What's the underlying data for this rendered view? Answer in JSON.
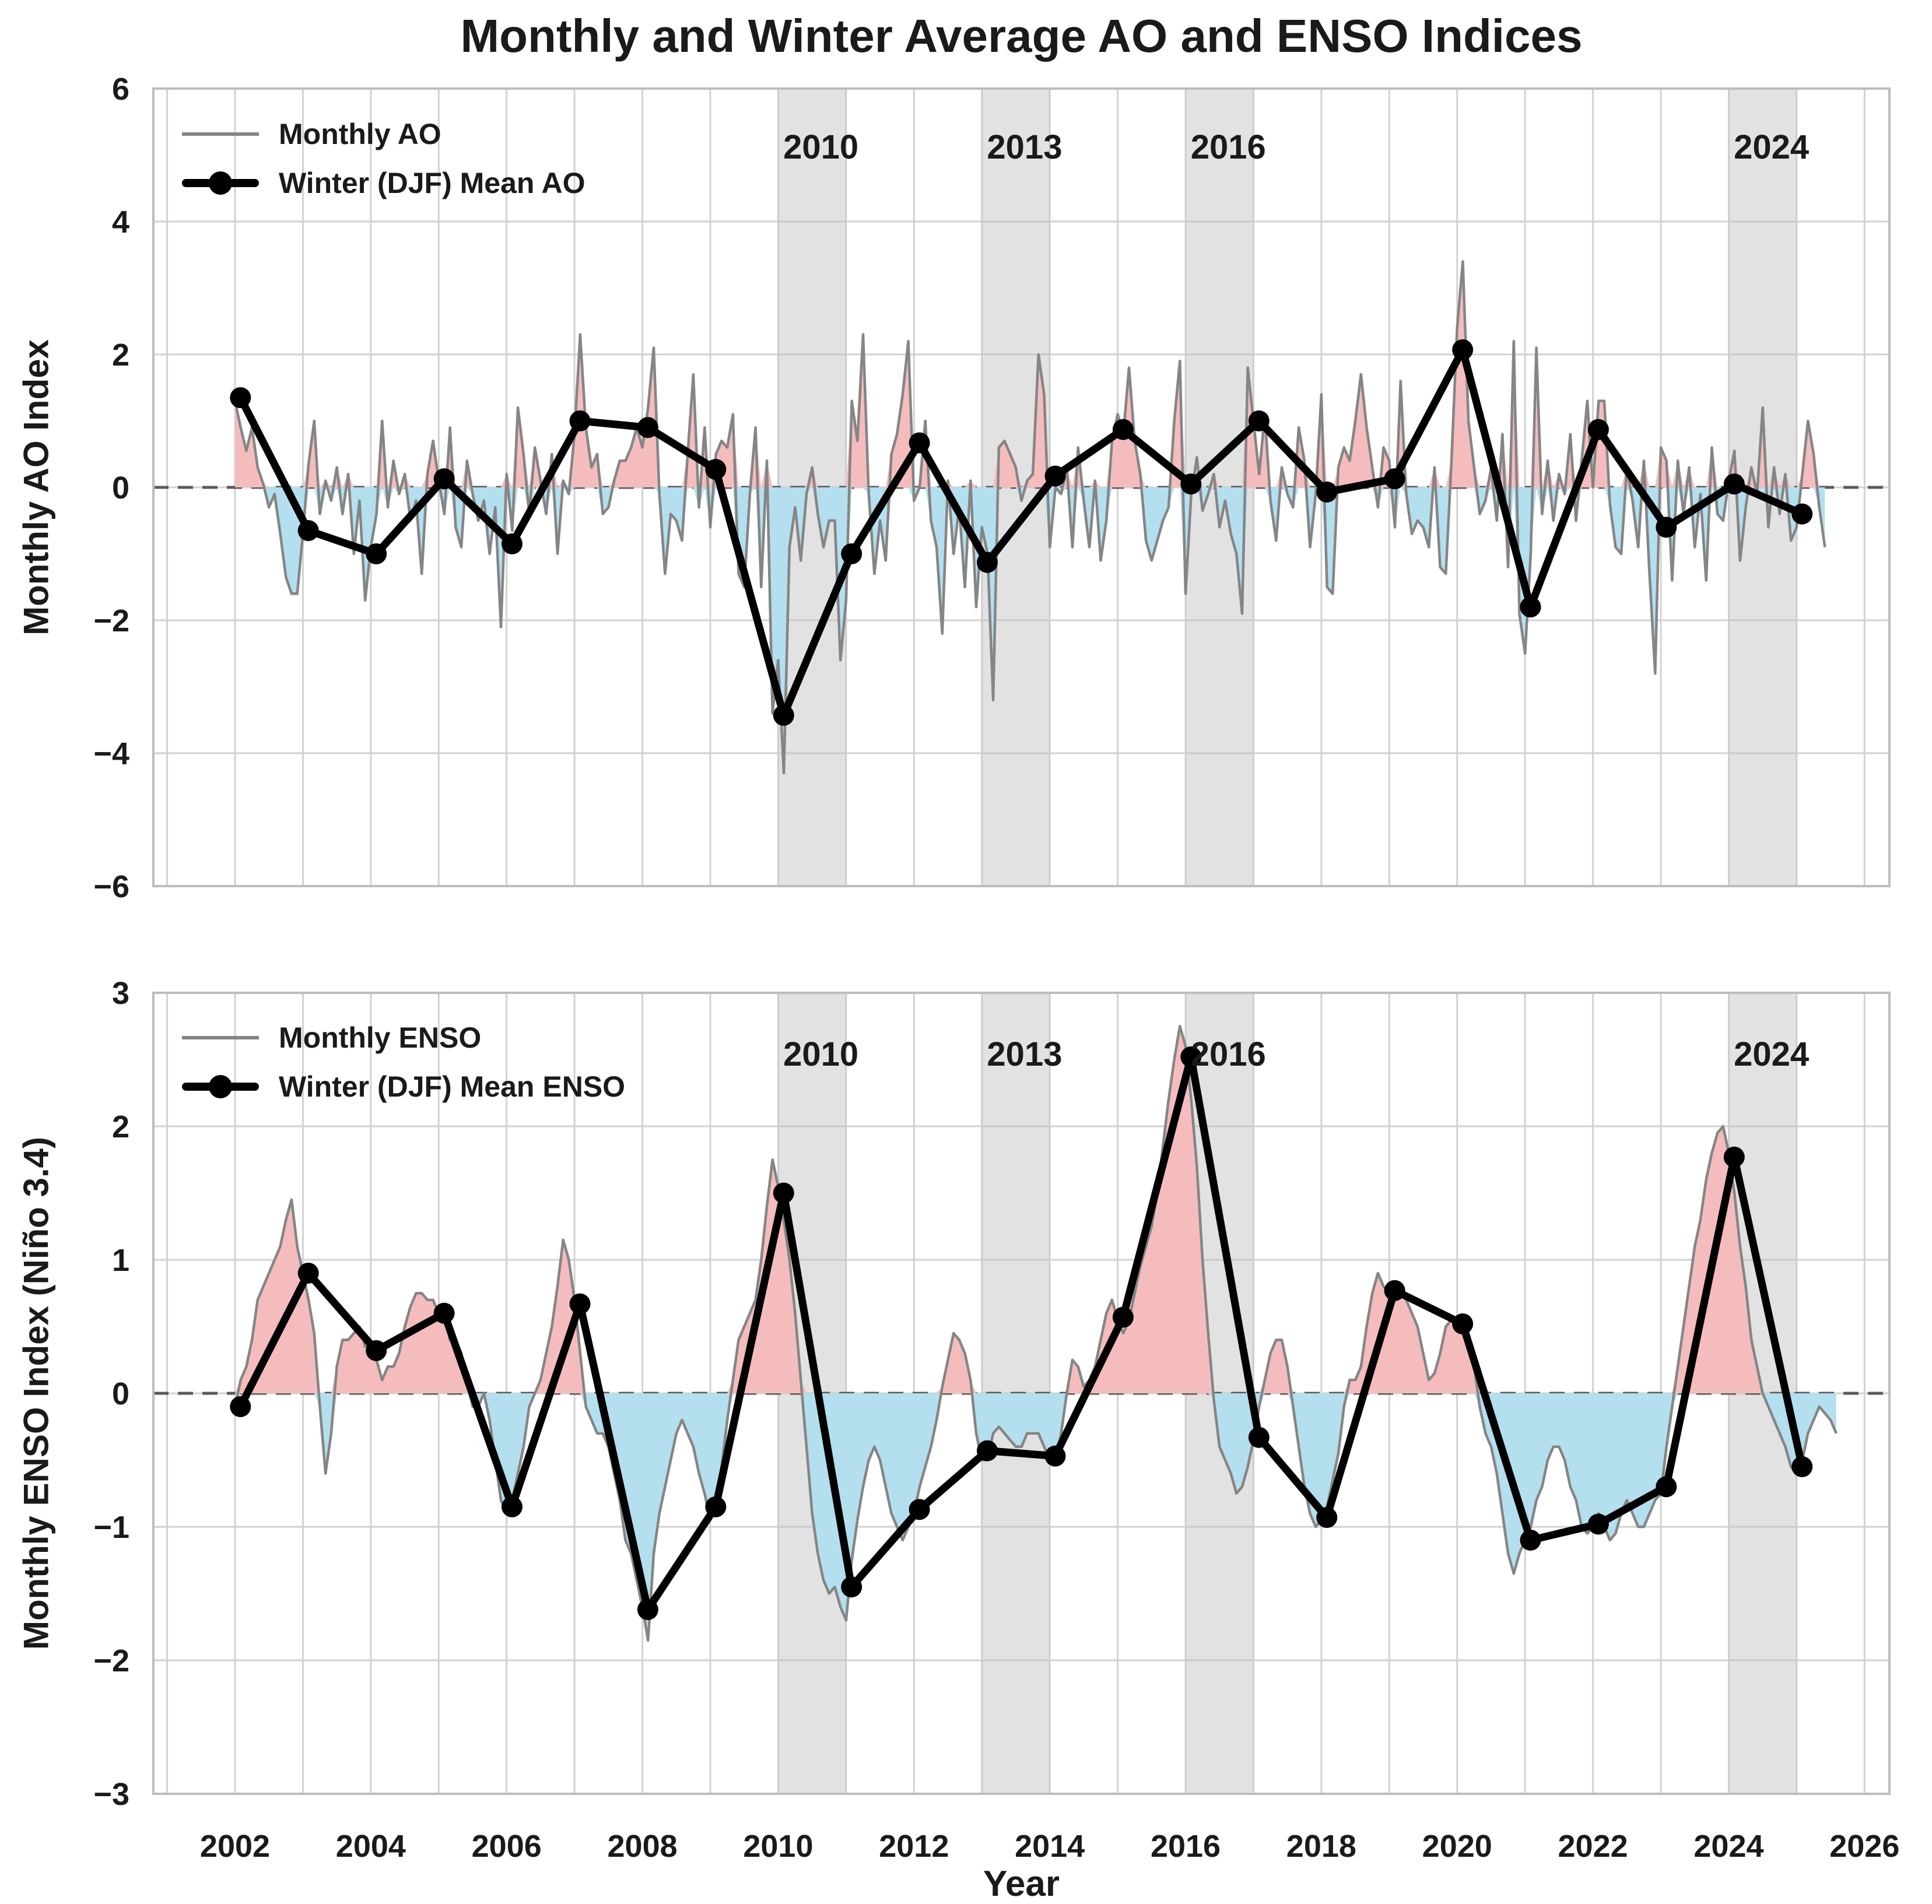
{
  "title": "Monthly and Winter Average AO and ENSO Indices",
  "xlabel": "Year",
  "colors": {
    "positive_fill": "#F5BCBE",
    "negative_fill": "#B4DFEF",
    "monthly_line": "#858585",
    "winter_line": "#000000",
    "highlight_band": "rgba(190,190,190,0.45)",
    "grid": "#D2D2D2",
    "spine": "#BDBDBD",
    "zero_line": "#5A5A5A",
    "text": "#1A1A1A"
  },
  "x_ticks": [
    2002,
    2004,
    2006,
    2008,
    2010,
    2012,
    2014,
    2016,
    2018,
    2020,
    2022,
    2024,
    2026
  ],
  "highlights": [
    {
      "year": 2010,
      "label": "2010"
    },
    {
      "year": 2013,
      "label": "2013"
    },
    {
      "year": 2016,
      "label": "2016"
    },
    {
      "year": 2024,
      "label": "2024"
    }
  ],
  "chart_data": [
    {
      "type": "area+line",
      "panel": "ao",
      "ylabel": "Monthly AO Index",
      "ylim": [
        -6,
        6
      ],
      "y_ticks": [
        6,
        4,
        2,
        0,
        -2,
        -4,
        -6
      ],
      "xlim_years": [
        2000.8,
        2026.4
      ],
      "grid": "on",
      "legend_position": "upper-left",
      "legend": [
        "Monthly AO",
        "Winter (DJF) Mean AO"
      ],
      "monthly": {
        "name": "Monthly AO",
        "start_year": 2002,
        "step_months": 1,
        "values": [
          1.3,
          0.9,
          0.55,
          0.9,
          0.3,
          0.05,
          -0.3,
          -0.1,
          -0.7,
          -1.35,
          -1.6,
          -1.6,
          -0.7,
          0.35,
          1.0,
          -0.4,
          0.1,
          -0.2,
          0.3,
          -0.4,
          0.2,
          -1.0,
          -0.2,
          -1.7,
          -0.9,
          -0.4,
          1.0,
          -0.3,
          0.4,
          -0.1,
          0.2,
          -0.5,
          -0.2,
          -1.3,
          0.2,
          0.7,
          0.1,
          -0.4,
          0.9,
          -0.6,
          -0.9,
          0.4,
          -0.1,
          -0.5,
          -0.2,
          -1.0,
          -0.3,
          -2.1,
          0.2,
          -0.65,
          1.2,
          0.5,
          -0.4,
          0.6,
          0.1,
          -0.4,
          0.5,
          -1.0,
          0.1,
          -0.1,
          0.8,
          2.3,
          0.9,
          0.3,
          0.5,
          -0.4,
          -0.3,
          0.1,
          0.4,
          0.4,
          0.6,
          0.9,
          0.6,
          1.2,
          2.1,
          -0.1,
          -1.3,
          -0.4,
          -0.5,
          -0.8,
          0.5,
          1.7,
          -0.3,
          0.9,
          -0.6,
          0.5,
          0.7,
          0.6,
          1.1,
          -1.3,
          -1.5,
          -0.1,
          0.9,
          -1.5,
          0.4,
          -3.4,
          -2.6,
          -4.3,
          -0.9,
          -0.3,
          -1.1,
          -0.1,
          0.3,
          -0.4,
          -0.9,
          -0.5,
          -0.5,
          -2.6,
          -1.7,
          1.3,
          0.7,
          2.3,
          -0.1,
          -1.3,
          -0.5,
          -1.1,
          0.5,
          0.8,
          1.4,
          2.2,
          -0.2,
          0.0,
          1.0,
          -0.5,
          -0.9,
          -2.2,
          0.1,
          -1.0,
          -0.3,
          -1.5,
          0.1,
          -1.8,
          -0.6,
          -1.0,
          -3.2,
          0.6,
          0.7,
          0.5,
          0.3,
          -0.2,
          0.1,
          0.2,
          2.0,
          1.4,
          -0.9,
          0.0,
          -0.1,
          0.3,
          -0.9,
          0.6,
          -0.2,
          -0.9,
          0.1,
          -1.1,
          -0.5,
          0.7,
          1.1,
          0.8,
          1.8,
          0.7,
          0.2,
          -0.8,
          -1.1,
          -0.8,
          -0.5,
          -0.3,
          1.0,
          1.9,
          -1.6,
          -0.1,
          0.45,
          -0.35,
          -0.1,
          0.2,
          -0.6,
          -0.2,
          -0.7,
          -1.0,
          -1.9,
          1.8,
          1.0,
          0.2,
          1.1,
          -0.2,
          -0.8,
          0.3,
          -0.1,
          -0.3,
          0.9,
          0.4,
          -0.9,
          -0.1,
          1.4,
          -1.5,
          -1.6,
          0.3,
          0.6,
          0.4,
          1.0,
          1.7,
          0.9,
          0.3,
          -0.3,
          0.6,
          0.4,
          -0.6,
          1.6,
          -0.1,
          -0.7,
          -0.5,
          -0.6,
          -0.9,
          0.3,
          -1.2,
          -1.3,
          0.4,
          2.4,
          3.4,
          1.0,
          0.3,
          -0.4,
          -0.2,
          0.3,
          -0.5,
          0.8,
          -1.2,
          2.2,
          -1.9,
          -2.5,
          -1.0,
          2.1,
          -0.4,
          0.4,
          -0.5,
          0.2,
          -0.1,
          0.8,
          -0.5,
          0.4,
          1.3,
          0.0,
          1.3,
          1.3,
          -0.25,
          -0.9,
          -1.0,
          0.3,
          -0.2,
          -0.9,
          0.4,
          -1.3,
          -2.8,
          0.6,
          0.4,
          -1.4,
          0.4,
          -0.4,
          0.3,
          -0.9,
          -0.1,
          -1.4,
          0.6,
          -0.4,
          -0.5,
          0.1,
          0.55,
          -1.1,
          -0.3,
          0.3,
          -0.1,
          1.2,
          -0.6,
          0.3,
          -0.4,
          0.2,
          -0.8,
          -0.6,
          0.2,
          1.0,
          0.5,
          -0.3,
          -0.9
        ]
      },
      "winter": {
        "name": "Winter (DJF) Mean AO",
        "years": [
          2002,
          2003,
          2004,
          2005,
          2006,
          2007,
          2008,
          2009,
          2010,
          2011,
          2012,
          2013,
          2014,
          2015,
          2016,
          2017,
          2018,
          2019,
          2020,
          2021,
          2022,
          2023,
          2024,
          2025
        ],
        "values": [
          1.35,
          -0.65,
          -1.0,
          0.13,
          -0.85,
          1.0,
          0.9,
          0.27,
          -3.43,
          -1.0,
          0.67,
          -1.13,
          0.17,
          0.87,
          0.05,
          1.0,
          -0.07,
          0.13,
          2.07,
          -1.8,
          0.87,
          -0.6,
          0.05,
          -0.4
        ]
      }
    },
    {
      "type": "area+line",
      "panel": "enso",
      "ylabel": "Monthly ENSO Index (Niño 3.4)",
      "ylim": [
        -3,
        3
      ],
      "y_ticks": [
        3,
        2,
        1,
        0,
        -1,
        -2,
        -3
      ],
      "xlim_years": [
        2000.8,
        2026.4
      ],
      "grid": "on",
      "legend_position": "upper-left",
      "legend": [
        "Monthly ENSO",
        "Winter (DJF) Mean ENSO"
      ],
      "monthly": {
        "name": "Monthly ENSO",
        "start_year": 2002,
        "step_months": 1,
        "values": [
          -0.1,
          0.1,
          0.2,
          0.4,
          0.7,
          0.8,
          0.9,
          1.0,
          1.1,
          1.3,
          1.45,
          1.1,
          0.9,
          0.7,
          0.45,
          -0.1,
          -0.6,
          -0.3,
          0.2,
          0.4,
          0.4,
          0.45,
          0.5,
          0.35,
          0.35,
          0.25,
          0.1,
          0.2,
          0.2,
          0.3,
          0.5,
          0.65,
          0.75,
          0.75,
          0.7,
          0.7,
          0.6,
          0.6,
          0.4,
          0.4,
          0.3,
          0.1,
          -0.1,
          -0.1,
          0.0,
          -0.2,
          -0.5,
          -0.8,
          -0.9,
          -0.8,
          -0.6,
          -0.4,
          -0.1,
          0.0,
          0.1,
          0.3,
          0.5,
          0.8,
          1.15,
          1.0,
          0.7,
          0.3,
          -0.1,
          -0.2,
          -0.3,
          -0.3,
          -0.4,
          -0.6,
          -0.8,
          -1.1,
          -1.2,
          -1.4,
          -1.6,
          -1.85,
          -1.2,
          -0.9,
          -0.7,
          -0.5,
          -0.3,
          -0.2,
          -0.3,
          -0.4,
          -0.6,
          -0.75,
          -0.95,
          -0.85,
          -0.55,
          -0.2,
          0.1,
          0.4,
          0.5,
          0.6,
          0.7,
          1.0,
          1.4,
          1.75,
          1.55,
          1.3,
          1.0,
          0.6,
          0.1,
          -0.4,
          -0.9,
          -1.2,
          -1.4,
          -1.5,
          -1.45,
          -1.6,
          -1.7,
          -1.25,
          -0.95,
          -0.7,
          -0.5,
          -0.4,
          -0.5,
          -0.7,
          -0.9,
          -1.0,
          -1.1,
          -1.0,
          -0.9,
          -0.7,
          -0.55,
          -0.4,
          -0.2,
          0.05,
          0.25,
          0.45,
          0.4,
          0.3,
          0.1,
          -0.3,
          -0.5,
          -0.5,
          -0.3,
          -0.25,
          -0.3,
          -0.35,
          -0.4,
          -0.4,
          -0.3,
          -0.3,
          -0.3,
          -0.4,
          -0.5,
          -0.5,
          -0.3,
          0.0,
          0.25,
          0.2,
          0.05,
          0.1,
          0.2,
          0.4,
          0.6,
          0.7,
          0.55,
          0.45,
          0.55,
          0.75,
          0.95,
          1.1,
          1.25,
          1.5,
          1.85,
          2.2,
          2.5,
          2.75,
          2.6,
          2.2,
          1.7,
          1.0,
          0.45,
          -0.05,
          -0.4,
          -0.5,
          -0.6,
          -0.75,
          -0.7,
          -0.55,
          -0.35,
          -0.1,
          0.1,
          0.3,
          0.4,
          0.4,
          0.2,
          -0.1,
          -0.4,
          -0.7,
          -0.9,
          -1.0,
          -0.95,
          -0.85,
          -0.65,
          -0.45,
          -0.1,
          0.1,
          0.1,
          0.2,
          0.5,
          0.75,
          0.9,
          0.8,
          0.75,
          0.75,
          0.8,
          0.7,
          0.6,
          0.5,
          0.3,
          0.1,
          0.15,
          0.3,
          0.5,
          0.55,
          0.5,
          0.5,
          0.4,
          0.2,
          -0.1,
          -0.3,
          -0.4,
          -0.6,
          -0.9,
          -1.2,
          -1.35,
          -1.2,
          -1.1,
          -1.0,
          -0.8,
          -0.7,
          -0.5,
          -0.4,
          -0.4,
          -0.5,
          -0.7,
          -0.8,
          -1.0,
          -1.05,
          -1.0,
          -0.9,
          -1.0,
          -1.1,
          -1.05,
          -0.9,
          -0.8,
          -0.9,
          -1.0,
          -1.0,
          -0.9,
          -0.8,
          -0.75,
          -0.4,
          -0.1,
          0.2,
          0.5,
          0.8,
          1.1,
          1.3,
          1.6,
          1.8,
          1.95,
          2.0,
          1.8,
          1.5,
          1.1,
          0.8,
          0.4,
          0.2,
          0.0,
          -0.1,
          -0.2,
          -0.3,
          -0.4,
          -0.55,
          -0.6,
          -0.5,
          -0.3,
          -0.2,
          -0.1,
          -0.15,
          -0.2,
          -0.3
        ]
      },
      "winter": {
        "name": "Winter (DJF) Mean ENSO",
        "years": [
          2002,
          2003,
          2004,
          2005,
          2006,
          2007,
          2008,
          2009,
          2010,
          2011,
          2012,
          2013,
          2014,
          2015,
          2016,
          2017,
          2018,
          2019,
          2020,
          2021,
          2022,
          2023,
          2024,
          2025
        ],
        "values": [
          -0.1,
          0.9,
          0.32,
          0.6,
          -0.85,
          0.67,
          -1.62,
          -0.85,
          1.5,
          -1.45,
          -0.87,
          -0.43,
          -0.47,
          0.57,
          2.52,
          -0.33,
          -0.93,
          0.77,
          0.52,
          -1.1,
          -0.98,
          -0.7,
          1.77,
          -0.55
        ]
      }
    }
  ]
}
